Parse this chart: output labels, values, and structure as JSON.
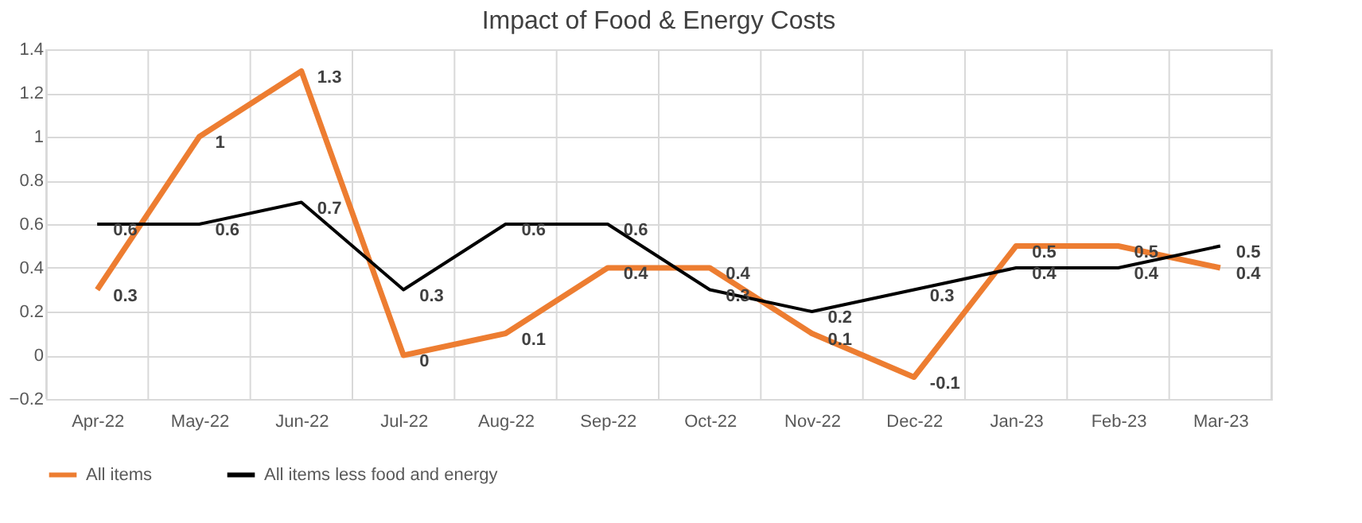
{
  "chart_data": {
    "type": "line",
    "title": "Impact of Food & Energy Costs",
    "categories": [
      "Apr-22",
      "May-22",
      "Jun-22",
      "Jul-22",
      "Aug-22",
      "Sep-22",
      "Oct-22",
      "Nov-22",
      "Dec-22",
      "Jan-23",
      "Feb-23",
      "Mar-23"
    ],
    "series": [
      {
        "name": "All items",
        "color": "#ed7d31",
        "values": [
          0.3,
          1,
          1.3,
          0,
          0.1,
          0.4,
          0.4,
          0.1,
          -0.1,
          0.5,
          0.5,
          0.4
        ]
      },
      {
        "name": "All items less food and energy",
        "color": "#000000",
        "values": [
          0.6,
          0.6,
          0.7,
          0.3,
          0.6,
          0.6,
          0.3,
          0.2,
          0.3,
          0.4,
          0.4,
          0.5
        ]
      }
    ],
    "ylim": [
      -0.2,
      1.4
    ],
    "yticks": [
      -0.2,
      0,
      0.2,
      0.4,
      0.6,
      0.8,
      1,
      1.2,
      1.4
    ],
    "grid": true,
    "legend": "bottom",
    "data_labels": true,
    "marker": "none",
    "line_style": "solid"
  }
}
